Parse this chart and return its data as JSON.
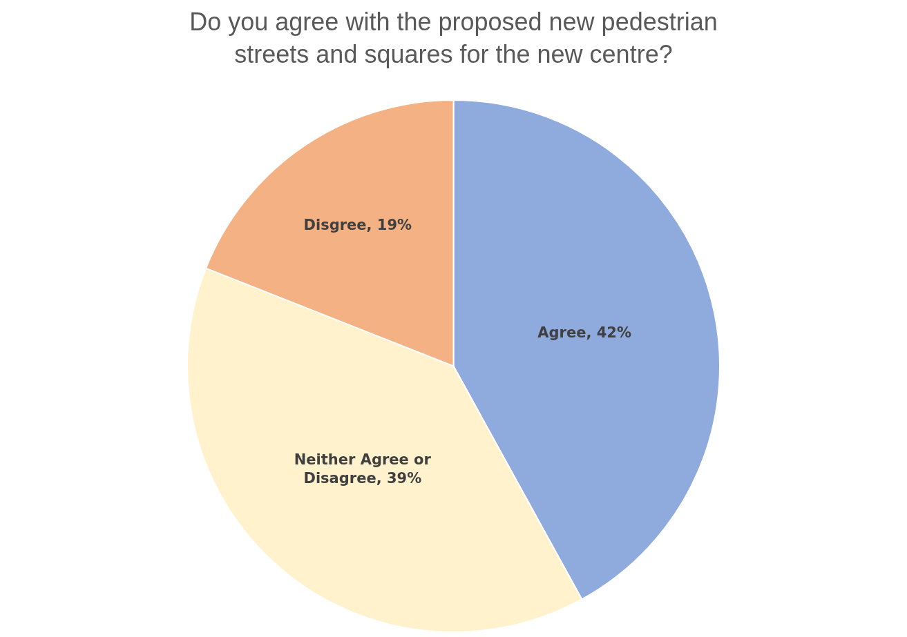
{
  "chart_data": {
    "type": "pie",
    "title": "Do you agree with the proposed new pedestrian streets and squares for the new centre?",
    "categories": [
      "Agree",
      "Neither Agree or Disagree",
      "Disgree"
    ],
    "values": [
      42,
      39,
      19
    ],
    "colors": [
      "#8faadc",
      "#fff2cc",
      "#f4b183"
    ],
    "value_labels": [
      "42%",
      "39%",
      "19%"
    ],
    "legend": false
  }
}
